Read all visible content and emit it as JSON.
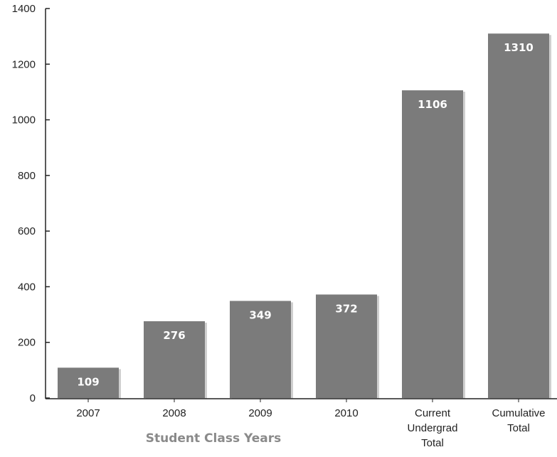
{
  "chart_data": {
    "type": "bar",
    "categories": [
      [
        "2007"
      ],
      [
        "2008"
      ],
      [
        "2009"
      ],
      [
        "2010"
      ],
      [
        "Current",
        "Undergrad",
        "Total"
      ],
      [
        "Cumulative",
        "Total"
      ]
    ],
    "values": [
      109,
      276,
      349,
      372,
      1106,
      1310
    ],
    "value_labels": [
      "109",
      "276",
      "349",
      "372",
      "1106",
      "1310"
    ],
    "xlabel": "Student Class Years",
    "ylabel": "",
    "ylim": [
      0,
      1400
    ],
    "yticks": [
      0,
      200,
      400,
      600,
      800,
      1000,
      1200,
      1400
    ],
    "grid": false,
    "bar_color": "#7b7b7b",
    "axis_title_color": "#8a8a8a"
  }
}
